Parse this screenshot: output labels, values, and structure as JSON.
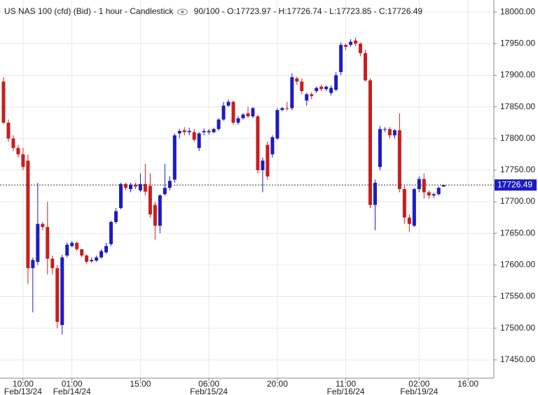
{
  "chart_data": {
    "type": "candlestick",
    "title": "US NAS 100 (cfd) (Bid) - 1 hour - Candlestick",
    "zoom": "90/100",
    "ohlc_labels": [
      "O:17723.97",
      "H:17726.74",
      "L:17723.85",
      "C:17726.49"
    ],
    "separator": " - ",
    "categories": [
      null,
      null,
      null,
      null,
      "10:00",
      null,
      null,
      null,
      null,
      null,
      null,
      null,
      null,
      null,
      "01:00",
      null,
      null,
      null,
      null,
      null,
      null,
      null,
      null,
      null,
      null,
      null,
      null,
      null,
      "15:00",
      null,
      null,
      null,
      null,
      null,
      null,
      null,
      null,
      null,
      null,
      null,
      null,
      null,
      "06:00",
      null,
      null,
      null,
      null,
      null,
      null,
      null,
      null,
      null,
      null,
      null,
      null,
      null,
      "20:00",
      null,
      null,
      null,
      null,
      null,
      null,
      null,
      null,
      null,
      null,
      null,
      null,
      null,
      "11:00",
      null,
      null,
      null,
      null,
      null,
      null,
      null,
      null,
      null,
      null,
      null,
      null,
      null,
      null,
      "02:00",
      null,
      null,
      null,
      null,
      null,
      null,
      null,
      null,
      null,
      "16:00"
    ],
    "category_dates": [
      null,
      null,
      null,
      null,
      "Feb/13/24",
      null,
      null,
      null,
      null,
      null,
      null,
      null,
      null,
      null,
      "Feb/14/24",
      null,
      null,
      null,
      null,
      null,
      null,
      null,
      null,
      null,
      null,
      null,
      null,
      null,
      null,
      null,
      null,
      null,
      null,
      null,
      null,
      null,
      null,
      null,
      null,
      null,
      null,
      null,
      "Feb/15/24",
      null,
      null,
      null,
      null,
      null,
      null,
      null,
      null,
      null,
      null,
      null,
      null,
      null,
      null,
      null,
      null,
      null,
      null,
      null,
      null,
      null,
      null,
      null,
      null,
      null,
      null,
      null,
      "Feb/16/24",
      null,
      null,
      null,
      null,
      null,
      null,
      null,
      null,
      null,
      null,
      null,
      null,
      null,
      null,
      "Feb/19/24",
      null,
      null,
      null,
      null,
      null,
      null,
      null,
      null,
      null,
      null
    ],
    "open": [
      17890,
      17825,
      17800,
      17785,
      17775,
      17765,
      17595,
      17605,
      17665,
      17660,
      17610,
      17595,
      17505,
      17615,
      17630,
      17635,
      17625,
      17615,
      17606,
      17607,
      17612,
      17620,
      17633,
      17668,
      17690,
      17728,
      17720,
      17727,
      17718,
      17728,
      17725,
      17695,
      17662,
      17712,
      17722,
      17735,
      17808,
      17813,
      17810,
      17810,
      17785,
      17810,
      17810,
      17810,
      17815,
      17830,
      17852,
      17858,
      17825,
      17832,
      17840,
      17835,
      17835,
      17750,
      17790,
      17775,
      17800,
      17845,
      17848,
      17848,
      17895,
      17890,
      17860,
      17870,
      17875,
      17882,
      17878,
      17872,
      17877,
      17905,
      17948,
      17948,
      17955,
      17950,
      17935,
      17892,
      17695,
      17755,
      17815,
      17815,
      17805,
      17813,
      17720,
      17675,
      17662,
      17720,
      17736,
      17715,
      17710,
      17712,
      17723.97,
      null,
      null,
      null,
      null,
      null
    ],
    "high": [
      17897,
      17830,
      17805,
      17790,
      17785,
      17775,
      17612,
      17730,
      17668,
      17700,
      17615,
      17600,
      17616,
      17636,
      17638,
      17637,
      17620,
      17617,
      17612,
      17615,
      17625,
      17635,
      17670,
      17690,
      17730,
      17730,
      17730,
      17730,
      17745,
      17760,
      17745,
      17700,
      17712,
      17760,
      17740,
      17808,
      17815,
      17818,
      17817,
      17815,
      17810,
      17816,
      17815,
      17817,
      17832,
      17858,
      17862,
      17860,
      17835,
      17840,
      17850,
      17850,
      17838,
      17770,
      17795,
      17805,
      17848,
      17850,
      17858,
      17903,
      17898,
      17895,
      17872,
      17873,
      17882,
      17885,
      17884,
      17884,
      17905,
      17952,
      17950,
      17957,
      17960,
      17952,
      17940,
      17895,
      17735,
      17820,
      17818,
      17818,
      17815,
      17840,
      17725,
      17680,
      17722,
      17740,
      17745,
      17718,
      17714,
      17724,
      17726.74,
      null,
      null,
      null,
      null,
      null
    ],
    "low": [
      17823,
      17795,
      17780,
      17770,
      17750,
      17570,
      17525,
      17600,
      17655,
      17585,
      17585,
      17500,
      17490,
      17612,
      17628,
      17622,
      17612,
      17602,
      17604,
      17605,
      17610,
      17618,
      17630,
      17665,
      17688,
      17718,
      17715,
      17720,
      17715,
      17710,
      17675,
      17640,
      17650,
      17710,
      17718,
      17730,
      17800,
      17805,
      17805,
      17795,
      17780,
      17805,
      17806,
      17808,
      17812,
      17828,
      17850,
      17822,
      17822,
      17830,
      17833,
      17832,
      17745,
      17715,
      17735,
      17770,
      17798,
      17843,
      17844,
      17845,
      17885,
      17870,
      17852,
      17862,
      17872,
      17875,
      17875,
      17868,
      17875,
      17900,
      17940,
      17945,
      17946,
      17930,
      17890,
      17690,
      17655,
      17750,
      17810,
      17800,
      17800,
      17715,
      17665,
      17652,
      17660,
      17715,
      17705,
      17705,
      17706,
      17710,
      17723.85,
      null,
      null,
      null,
      null,
      null
    ],
    "close": [
      17825,
      17800,
      17785,
      17775,
      17755,
      17595,
      17608,
      17665,
      17660,
      17610,
      17595,
      17510,
      17612,
      17632,
      17635,
      17625,
      17615,
      17605,
      17608,
      17612,
      17622,
      17630,
      17668,
      17685,
      17728,
      17722,
      17727,
      17724,
      17728,
      17716,
      17680,
      17662,
      17710,
      17722,
      17733,
      17805,
      17812,
      17810,
      17812,
      17798,
      17808,
      17812,
      17812,
      17815,
      17830,
      17852,
      17858,
      17825,
      17832,
      17838,
      17835,
      17848,
      17750,
      17765,
      17740,
      17802,
      17845,
      17848,
      17847,
      17897,
      17890,
      17875,
      17870,
      17867,
      17880,
      17878,
      17882,
      17880,
      17900,
      17948,
      17945,
      17953,
      17950,
      17935,
      17892,
      17695,
      17730,
      17815,
      17815,
      17805,
      17813,
      17720,
      17675,
      17665,
      17720,
      17736,
      17715,
      17710,
      17712,
      17722,
      17726.49,
      null,
      null,
      null,
      null,
      null
    ],
    "up_color": "#1c1cc4",
    "down_color": "#c81e1e",
    "last_price": 17726.49,
    "last_price_color": "#1c1cc4",
    "ylim": [
      17421,
      18019
    ],
    "yticks": [
      {
        "value": 17450,
        "label": "17450.00"
      },
      {
        "value": 17500,
        "label": "17500.00"
      },
      {
        "value": 17550,
        "label": "17550.00"
      },
      {
        "value": 17600,
        "label": "17600.00"
      },
      {
        "value": 17650,
        "label": "17650.00"
      },
      {
        "value": 17700,
        "label": "17700.00"
      },
      {
        "value": 17750,
        "label": "17750.00"
      },
      {
        "value": 17800,
        "label": "17800.00"
      },
      {
        "value": 17850,
        "label": "17850.00"
      },
      {
        "value": 17900,
        "label": "17900.00"
      },
      {
        "value": 17950,
        "label": "17950.00"
      },
      {
        "value": 18000,
        "label": "18000.00"
      }
    ],
    "grid": true
  }
}
